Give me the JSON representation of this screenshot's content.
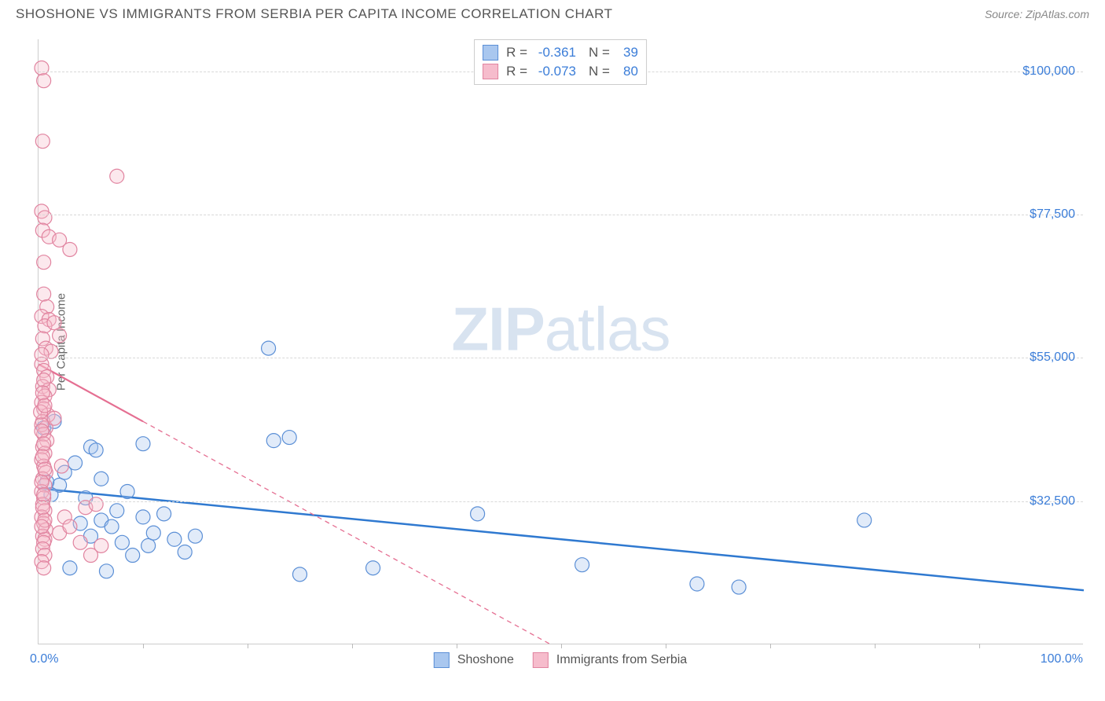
{
  "title": "SHOSHONE VS IMMIGRANTS FROM SERBIA PER CAPITA INCOME CORRELATION CHART",
  "source": "Source: ZipAtlas.com",
  "watermark_bold": "ZIP",
  "watermark_light": "atlas",
  "y_axis_label": "Per Capita Income",
  "x_label_min": "0.0%",
  "x_label_max": "100.0%",
  "chart": {
    "type": "scatter",
    "background_color": "#ffffff",
    "grid_color": "#d8d8d8",
    "axis_color": "#cccccc",
    "xlim": [
      0,
      100
    ],
    "ylim": [
      10000,
      105000
    ],
    "y_ticks": [
      32500,
      55000,
      77500,
      100000
    ],
    "y_tick_labels": [
      "$32,500",
      "$55,000",
      "$77,500",
      "$100,000"
    ],
    "x_minor_ticks": [
      10,
      20,
      30,
      40,
      50,
      60,
      70,
      80,
      90
    ],
    "marker_radius": 9,
    "marker_stroke_width": 1.2,
    "marker_fill_opacity": 0.35,
    "series": [
      {
        "name": "Shoshone",
        "fill": "#a9c7ef",
        "stroke": "#5b8fd6",
        "line_color": "#2f79d0",
        "line_width": 2.5,
        "line_dash": "none",
        "regression": {
          "x1": 0,
          "y1": 34500,
          "x2": 100,
          "y2": 18500
        },
        "points": [
          [
            0.5,
            44000
          ],
          [
            1.5,
            45000
          ],
          [
            2,
            35000
          ],
          [
            2.5,
            37000
          ],
          [
            3,
            22000
          ],
          [
            3.5,
            38500
          ],
          [
            4,
            29000
          ],
          [
            4.5,
            33000
          ],
          [
            5,
            41000
          ],
          [
            5,
            27000
          ],
          [
            5.5,
            40500
          ],
          [
            6,
            29500
          ],
          [
            6,
            36000
          ],
          [
            6.5,
            21500
          ],
          [
            7,
            28500
          ],
          [
            7.5,
            31000
          ],
          [
            8,
            26000
          ],
          [
            8.5,
            34000
          ],
          [
            9,
            24000
          ],
          [
            10,
            30000
          ],
          [
            10,
            41500
          ],
          [
            10.5,
            25500
          ],
          [
            11,
            27500
          ],
          [
            12,
            30500
          ],
          [
            13,
            26500
          ],
          [
            14,
            24500
          ],
          [
            15,
            27000
          ],
          [
            22,
            56500
          ],
          [
            22.5,
            42000
          ],
          [
            24,
            42500
          ],
          [
            25,
            21000
          ],
          [
            32,
            22000
          ],
          [
            42,
            30500
          ],
          [
            52,
            22500
          ],
          [
            63,
            19500
          ],
          [
            67,
            19000
          ],
          [
            79,
            29500
          ],
          [
            0.8,
            35500
          ],
          [
            1.2,
            33500
          ]
        ]
      },
      {
        "name": "Immigrants from Serbia",
        "fill": "#f6bccc",
        "stroke": "#e184a0",
        "line_color": "#e56f92",
        "line_width": 2.2,
        "line_dash": "6 5",
        "regression": {
          "x1": 0,
          "y1": 54000,
          "x2": 49,
          "y2": 10000
        },
        "solid_portion": {
          "x1": 0,
          "y1": 54000,
          "x2": 10,
          "y2": 45000
        },
        "points": [
          [
            0.3,
            100500
          ],
          [
            0.5,
            98500
          ],
          [
            0.4,
            89000
          ],
          [
            0.3,
            78000
          ],
          [
            0.6,
            77000
          ],
          [
            0.4,
            75000
          ],
          [
            1,
            74000
          ],
          [
            0.5,
            70000
          ],
          [
            2,
            73500
          ],
          [
            3,
            72000
          ],
          [
            0.5,
            65000
          ],
          [
            0.8,
            63000
          ],
          [
            0.3,
            61500
          ],
          [
            1,
            61000
          ],
          [
            0.6,
            60000
          ],
          [
            0.4,
            58000
          ],
          [
            0.7,
            56500
          ],
          [
            1.2,
            56000
          ],
          [
            0.3,
            54000
          ],
          [
            0.5,
            53000
          ],
          [
            0.8,
            52000
          ],
          [
            0.4,
            50500
          ],
          [
            1,
            50000
          ],
          [
            0.6,
            49000
          ],
          [
            0.3,
            48000
          ],
          [
            0.5,
            47000
          ],
          [
            0.9,
            46000
          ],
          [
            1.5,
            60500
          ],
          [
            2,
            58500
          ],
          [
            0.4,
            45000
          ],
          [
            0.7,
            44000
          ],
          [
            0.3,
            44500
          ],
          [
            0.5,
            43000
          ],
          [
            0.8,
            42000
          ],
          [
            0.4,
            41000
          ],
          [
            0.6,
            40000
          ],
          [
            0.3,
            39000
          ],
          [
            0.5,
            38000
          ],
          [
            0.7,
            37000
          ],
          [
            0.4,
            36000
          ],
          [
            0.6,
            35000
          ],
          [
            0.3,
            34000
          ],
          [
            0.5,
            33000
          ],
          [
            0.4,
            32000
          ],
          [
            0.6,
            31000
          ],
          [
            0.3,
            30000
          ],
          [
            0.5,
            29000
          ],
          [
            0.7,
            28000
          ],
          [
            0.4,
            27000
          ],
          [
            0.6,
            26500
          ],
          [
            2,
            27500
          ],
          [
            2.5,
            30000
          ],
          [
            3,
            28500
          ],
          [
            4,
            26000
          ],
          [
            4.5,
            31500
          ],
          [
            5,
            24000
          ],
          [
            5.5,
            32000
          ],
          [
            6,
            25500
          ],
          [
            7.5,
            83500
          ],
          [
            0.2,
            46500
          ],
          [
            0.3,
            55500
          ],
          [
            0.5,
            51500
          ],
          [
            0.4,
            49500
          ],
          [
            0.6,
            47500
          ],
          [
            0.3,
            43500
          ],
          [
            0.5,
            41500
          ],
          [
            0.4,
            39500
          ],
          [
            0.6,
            37500
          ],
          [
            0.3,
            35500
          ],
          [
            0.5,
            33500
          ],
          [
            0.4,
            31500
          ],
          [
            0.6,
            29500
          ],
          [
            0.3,
            28500
          ],
          [
            0.5,
            26000
          ],
          [
            0.4,
            25000
          ],
          [
            0.6,
            24000
          ],
          [
            0.3,
            23000
          ],
          [
            0.5,
            22000
          ],
          [
            1.5,
            45500
          ],
          [
            2.2,
            38000
          ]
        ]
      }
    ]
  },
  "stats": {
    "rows": [
      {
        "swatch_fill": "#a9c7ef",
        "swatch_stroke": "#5b8fd6",
        "r_label": "R =",
        "r": "-0.361",
        "n_label": "N =",
        "n": "39"
      },
      {
        "swatch_fill": "#f6bccc",
        "swatch_stroke": "#e184a0",
        "r_label": "R =",
        "r": "-0.073",
        "n_label": "N =",
        "n": "80"
      }
    ]
  },
  "legend": {
    "items": [
      {
        "swatch_fill": "#a9c7ef",
        "swatch_stroke": "#5b8fd6",
        "label": "Shoshone"
      },
      {
        "swatch_fill": "#f6bccc",
        "swatch_stroke": "#e184a0",
        "label": "Immigrants from Serbia"
      }
    ]
  }
}
